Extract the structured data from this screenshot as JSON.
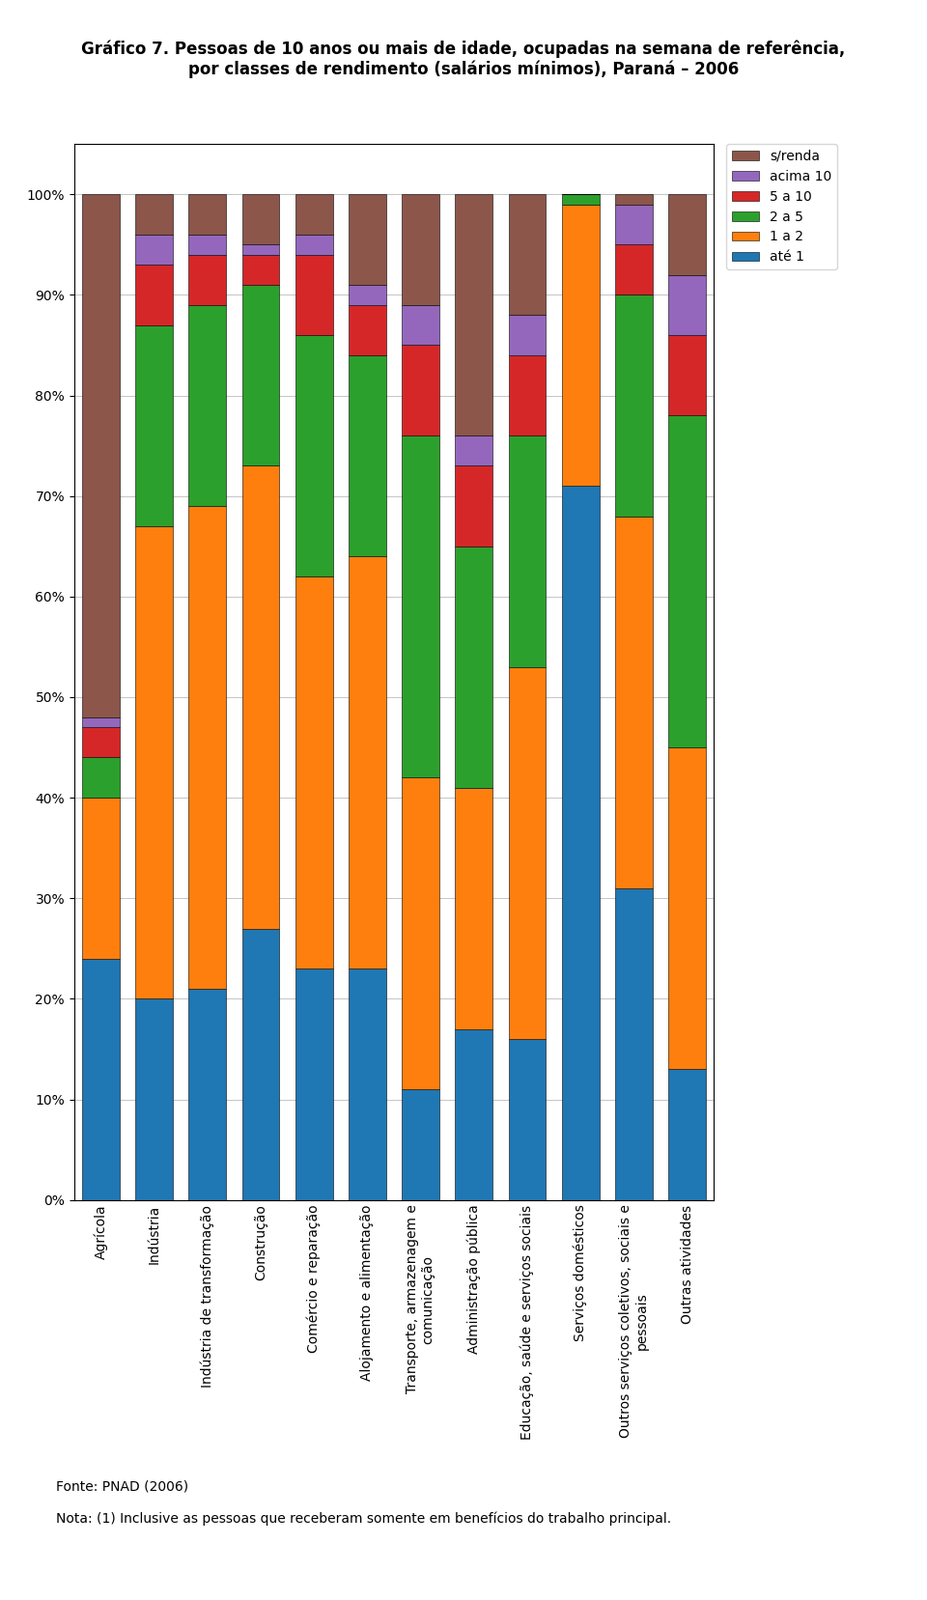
{
  "chart_data": {
    "type": "bar",
    "stacked": true,
    "title": "Gráfico 7. Pessoas de 10 anos ou mais de idade, ocupadas na semana de referência,\npor classes de rendimento (salários mínimos), Paraná – 2006",
    "categories": [
      "Agrícola",
      "Indústria",
      "Indústria de transformação",
      "Construção",
      "Comércio e reparação",
      "Alojamento e alimentação",
      "Transporte, armazenagem e\ncomunicação",
      "Administração pública",
      "Educação, saúde e serviços sociais",
      "Serviços domésticos",
      "Outros serviços coletivos, sociais e\npessoais",
      "Outras atividades"
    ],
    "series": [
      {
        "name": "até 1",
        "values": [
          24,
          20,
          21,
          27,
          23,
          23,
          11,
          17,
          16,
          71,
          31,
          13
        ]
      },
      {
        "name": "1 a 2",
        "values": [
          16,
          47,
          48,
          46,
          39,
          41,
          31,
          24,
          37,
          28,
          37,
          32
        ]
      },
      {
        "name": "2 a 5",
        "values": [
          4,
          20,
          20,
          18,
          24,
          20,
          34,
          24,
          23,
          1,
          22,
          33
        ]
      },
      {
        "name": "5 a 10",
        "values": [
          3,
          6,
          5,
          3,
          8,
          5,
          9,
          8,
          8,
          0,
          5,
          8
        ]
      },
      {
        "name": "acima 10",
        "values": [
          1,
          3,
          2,
          1,
          2,
          2,
          4,
          3,
          4,
          0,
          4,
          6
        ]
      },
      {
        "name": "s/renda",
        "values": [
          52,
          4,
          4,
          5,
          4,
          9,
          11,
          24,
          12,
          0,
          1,
          8
        ]
      }
    ],
    "ylim": [
      0,
      105
    ],
    "yticks": [
      {
        "value": 0,
        "label": "0%"
      },
      {
        "value": 10,
        "label": "10%"
      },
      {
        "value": 20,
        "label": "20%"
      },
      {
        "value": 30,
        "label": "30%"
      },
      {
        "value": 40,
        "label": "40%"
      },
      {
        "value": 50,
        "label": "50%"
      },
      {
        "value": 60,
        "label": "60%"
      },
      {
        "value": 70,
        "label": "70%"
      },
      {
        "value": 80,
        "label": "80%"
      },
      {
        "value": 90,
        "label": "90%"
      },
      {
        "value": 100,
        "label": "100%"
      }
    ],
    "grid": true,
    "legend": "upper left",
    "annotations": [
      "Fonte: PNAD (2006)",
      "Nota: (1) Inclusive as pessoas que receberam somente em benefícios do trabalho principal."
    ]
  }
}
